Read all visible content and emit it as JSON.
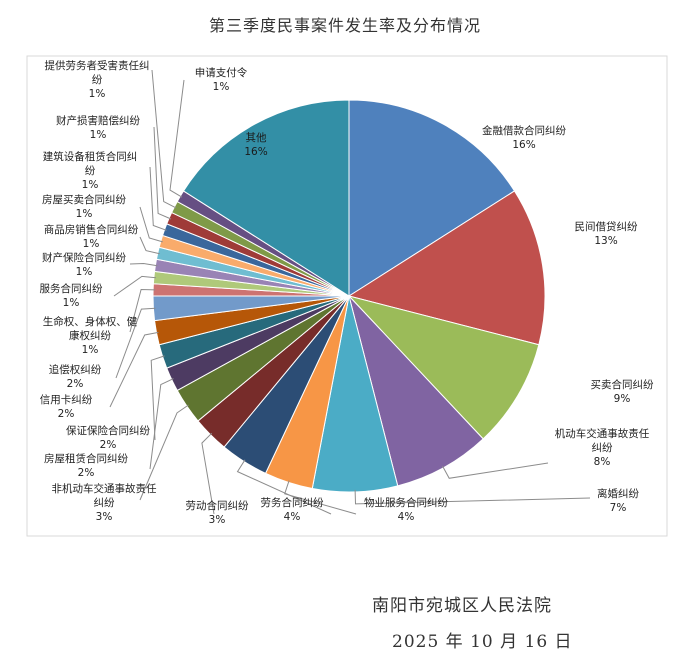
{
  "chart_data": {
    "type": "pie",
    "title": "第三季度民事案件发生率及分布情况",
    "slices": [
      {
        "label": "金融借款合同纠纷",
        "value": 16,
        "pct": "16%",
        "color": "#4f81bd"
      },
      {
        "label": "民间借贷纠纷",
        "value": 13,
        "pct": "13%",
        "color": "#c0504d"
      },
      {
        "label": "买卖合同纠纷",
        "value": 9,
        "pct": "9%",
        "color": "#9bbb59"
      },
      {
        "label": "机动车交通事故责任纠纷",
        "value": 8,
        "pct": "8%",
        "color": "#8064a2"
      },
      {
        "label": "离婚纠纷",
        "value": 7,
        "pct": "7%",
        "color": "#4bacc6"
      },
      {
        "label": "物业服务合同纠纷",
        "value": 4,
        "pct": "4%",
        "color": "#f79646"
      },
      {
        "label": "劳务合同纠纷",
        "value": 4,
        "pct": "4%",
        "color": "#2c4d75"
      },
      {
        "label": "劳动合同纠纷",
        "value": 3,
        "pct": "3%",
        "color": "#772c2a"
      },
      {
        "label": "非机动车交通事故责任纠纷",
        "value": 3,
        "pct": "3%",
        "color": "#5f7530"
      },
      {
        "label": "房屋租赁合同纠纷",
        "value": 2,
        "pct": "2%",
        "color": "#4d3b62"
      },
      {
        "label": "保证保险合同纠纷",
        "value": 2,
        "pct": "2%",
        "color": "#276a7c"
      },
      {
        "label": "信用卡纠纷",
        "value": 2,
        "pct": "2%",
        "color": "#b65708"
      },
      {
        "label": "追偿权纠纷",
        "value": 2,
        "pct": "2%",
        "color": "#729aca"
      },
      {
        "label": "生命权、身体权、健康权纠纷",
        "value": 1,
        "pct": "1%",
        "color": "#cd7371"
      },
      {
        "label": "服务合同纠纷",
        "value": 1,
        "pct": "1%",
        "color": "#afc97a"
      },
      {
        "label": "财产保险合同纠纷",
        "value": 1,
        "pct": "1%",
        "color": "#9983b5"
      },
      {
        "label": "商品房销售合同纠纷",
        "value": 1,
        "pct": "1%",
        "color": "#6fbdd1"
      },
      {
        "label": "房屋买卖合同纠纷",
        "value": 1,
        "pct": "1%",
        "color": "#f9ab6b"
      },
      {
        "label": "建筑设备租赁合同纠纷",
        "value": 1,
        "pct": "1%",
        "color": "#3a679c"
      },
      {
        "label": "财产损害赔偿纠纷",
        "value": 1,
        "pct": "1%",
        "color": "#9f3b38"
      },
      {
        "label": "提供劳务者受害责任纠纷",
        "value": 1,
        "pct": "1%",
        "color": "#7f9a48"
      },
      {
        "label": "申请支付令",
        "value": 1,
        "pct": "1%",
        "color": "#664f83"
      },
      {
        "label": "其他",
        "value": 16,
        "pct": "16%",
        "color": "#338fa6"
      }
    ]
  },
  "footer": {
    "court": "南阳市宛城区人民法院",
    "date": "2025 年 10 月 16 日"
  }
}
